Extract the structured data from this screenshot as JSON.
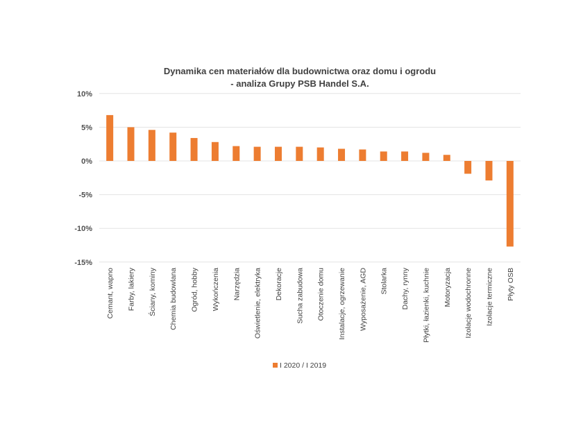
{
  "chart_data": {
    "type": "bar",
    "title": [
      "Dynamika cen materiałów dla budownictwa oraz domu i ogrodu",
      "- analiza Grupy PSB Handel S.A."
    ],
    "xlabel": "",
    "ylabel": "",
    "ylim": [
      -15,
      10
    ],
    "yticks": [
      10,
      5,
      0,
      -5,
      -10,
      -15
    ],
    "ytick_labels": [
      "10%",
      "5%",
      "0%",
      "-5%",
      "-10%",
      "-15%"
    ],
    "grid": true,
    "legend_position": "bottom",
    "categories": [
      "Cemant, wapno",
      "Farby, lakiery",
      "Ściany, kominy",
      "Chemia budowlana",
      "Ogród, hobby",
      "Wykończenia",
      "Narzędzia",
      "Oświetlenie, elektryka",
      "Dekoracje",
      "Sucha zabudowa",
      "Otoczenie domu",
      "Instalacje, ogrzewanie",
      "Wyposażenie, AGD",
      "Stolarka",
      "Dachy, rynny",
      "Płytki, łazienki, kuchnie",
      "Motoryzacja",
      "Izolacje wodochronne",
      "Izolacje termiczne",
      "Płyty OSB"
    ],
    "series": [
      {
        "name": "I 2020 / I 2019",
        "color": "#ED7D31",
        "values": [
          6.8,
          5.0,
          4.6,
          4.2,
          3.4,
          2.8,
          2.2,
          2.1,
          2.1,
          2.1,
          2.0,
          1.8,
          1.7,
          1.4,
          1.4,
          1.2,
          0.9,
          -1.9,
          -2.9,
          -12.7
        ]
      }
    ]
  }
}
